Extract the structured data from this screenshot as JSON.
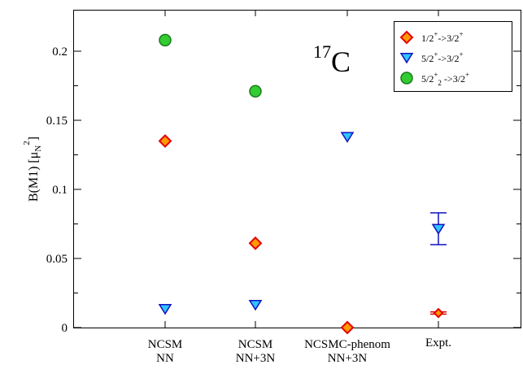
{
  "chart_data": {
    "type": "scatter",
    "ylabel": "B(M1) [μ",
    "ylabel_sub": "N",
    "ylabel_sup": "2",
    "ylabel_end": "]",
    "ylim": [
      0,
      0.23
    ],
    "yticks": [
      {
        "value": 0,
        "label": "0"
      },
      {
        "value": 0.05,
        "label": "0.05"
      },
      {
        "value": 0.1,
        "label": "0.1"
      },
      {
        "value": 0.15,
        "label": "0.15"
      },
      {
        "value": 0.2,
        "label": "0.2"
      }
    ],
    "annotation": {
      "mass": "17",
      "element": "C"
    },
    "categories": [
      {
        "main": "NCSM",
        "sub": "NN"
      },
      {
        "main": "NCSM",
        "sub": "NN+3N"
      },
      {
        "main": "NCSMC-phenom",
        "sub": "NN+3N"
      },
      {
        "main": "Expt.",
        "sub": ""
      }
    ],
    "series": [
      {
        "legend": {
          "a": "1/2",
          "a_sup": "+",
          "arrow": "->",
          "b": "3/2",
          "b_sup": "+",
          "a_sub": ""
        },
        "marker": "diamond",
        "fill": "#ff9900",
        "stroke": "#e60000",
        "values": [
          0.135,
          0.061,
          0.0,
          0.0105
        ],
        "errors": [
          null,
          null,
          null,
          0.0008
        ]
      },
      {
        "legend": {
          "a": "5/2",
          "a_sup": "+",
          "arrow": "->",
          "b": "3/2",
          "b_sup": "+",
          "a_sub": ""
        },
        "marker": "triangle-down",
        "fill": "#2ec4ff",
        "stroke": "#1010c0",
        "values": [
          0.0135,
          0.0165,
          0.138,
          0.0715
        ],
        "errors": [
          null,
          null,
          null,
          0.0115
        ]
      },
      {
        "legend": {
          "a": "5/2",
          "a_sup": "+",
          "arrow": " ->",
          "b": "3/2",
          "b_sup": "+",
          "a_sub": "2"
        },
        "marker": "circle",
        "fill": "#33cc33",
        "stroke": "#1a7a1a",
        "values": [
          0.208,
          0.171,
          null,
          null
        ],
        "errors": [
          null,
          null,
          null,
          null
        ]
      }
    ],
    "legend_position": "top-right",
    "grid": false
  }
}
